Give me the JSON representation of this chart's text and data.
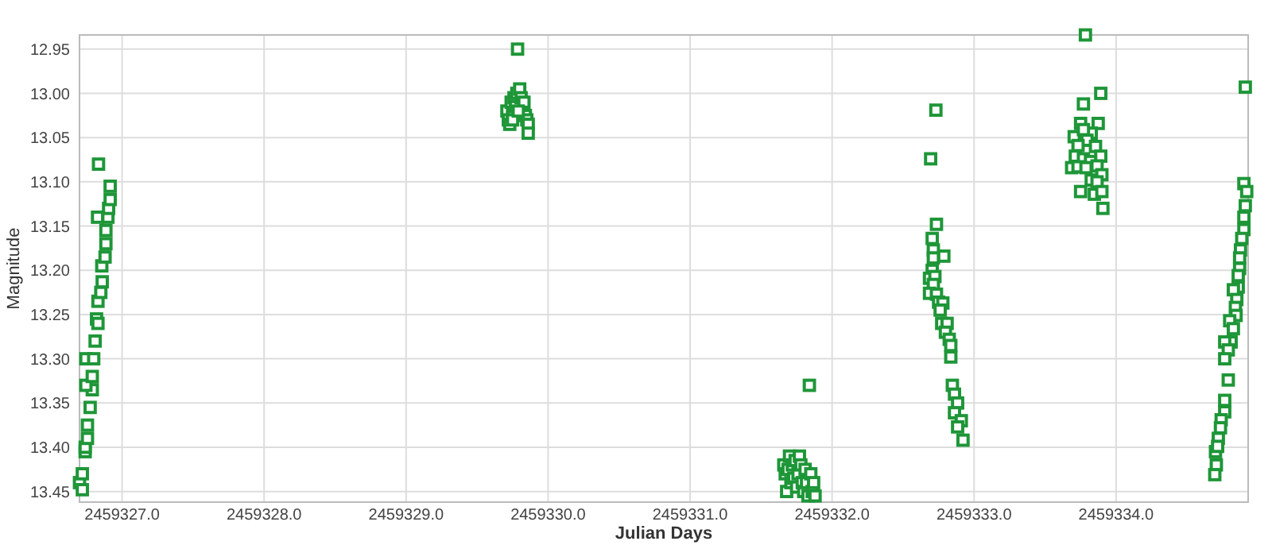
{
  "chart_data": {
    "type": "scatter",
    "xlabel": "Julian Days",
    "ylabel": "Magnitude",
    "marker": "square",
    "grid": true,
    "xlim": [
      2459326.7,
      2459334.93
    ],
    "ylim": [
      13.462,
      12.934
    ],
    "xticks": [
      {
        "value": 2459327,
        "label": "2459327.0"
      },
      {
        "value": 2459328,
        "label": "2459328.0"
      },
      {
        "value": 2459329,
        "label": "2459329.0"
      },
      {
        "value": 2459330,
        "label": "2459330.0"
      },
      {
        "value": 2459331,
        "label": "2459331.0"
      },
      {
        "value": 2459332,
        "label": "2459332.0"
      },
      {
        "value": 2459333,
        "label": "2459333.0"
      },
      {
        "value": 2459334,
        "label": "2459334.0"
      }
    ],
    "yticks": [
      {
        "value": 12.95,
        "label": "12.95"
      },
      {
        "value": 13,
        "label": "13.00"
      },
      {
        "value": 13.05,
        "label": "13.05"
      },
      {
        "value": 13.1,
        "label": "13.10"
      },
      {
        "value": 13.15,
        "label": "13.15"
      },
      {
        "value": 13.2,
        "label": "13.20"
      },
      {
        "value": 13.25,
        "label": "13.25"
      },
      {
        "value": 13.3,
        "label": "13.30"
      },
      {
        "value": 13.35,
        "label": "13.35"
      },
      {
        "value": 13.4,
        "label": "13.40"
      },
      {
        "value": 13.45,
        "label": "13.45"
      }
    ],
    "series": [
      {
        "color": "#1e9638",
        "x": [
          2459326.7,
          2459326.72,
          2459326.72,
          2459326.74,
          2459326.74,
          2459326.756,
          2459326.756,
          2459326.775,
          2459326.79,
          2459326.745,
          2459326.745,
          2459326.8,
          2459326.79,
          2459326.81,
          2459326.82,
          2459326.83,
          2459326.83,
          2459326.85,
          2459326.86,
          2459326.857,
          2459326.88,
          2459326.886,
          2459326.886,
          2459326.9,
          2459326.905,
          2459326.916,
          2459326.916,
          2459326.834,
          2459326.827,
          2459329.785,
          2459329.71,
          2459329.72,
          2459329.73,
          2459329.74,
          2459329.75,
          2459329.76,
          2459329.77,
          2459329.78,
          2459329.8,
          2459329.81,
          2459329.83,
          2459329.84,
          2459329.85,
          2459329.86,
          2459329.86,
          2459329.75,
          2459329.79,
          2459331.66,
          2459331.67,
          2459331.68,
          2459331.69,
          2459331.7,
          2459331.71,
          2459331.72,
          2459331.73,
          2459331.74,
          2459331.75,
          2459331.76,
          2459331.77,
          2459331.78,
          2459331.79,
          2459331.8,
          2459331.81,
          2459331.82,
          2459331.83,
          2459331.84,
          2459331.85,
          2459331.86,
          2459331.87,
          2459331.88,
          2459332.694,
          2459332.731,
          2459332.735,
          2459332.705,
          2459332.713,
          2459332.713,
          2459332.787,
          2459332.705,
          2459332.686,
          2459332.724,
          2459332.713,
          2459332.686,
          2459332.735,
          2459332.75,
          2459332.78,
          2459332.761,
          2459332.772,
          2459332.81,
          2459332.798,
          2459332.825,
          2459332.836,
          2459332.836,
          2459332.847,
          2459332.862,
          2459332.884,
          2459332.862,
          2459332.91,
          2459332.884,
          2459332.922,
          2459333.784,
          2459333.892,
          2459333.77,
          2459333.874,
          2459333.75,
          2459333.825,
          2459333.705,
          2459333.77,
          2459333.795,
          2459333.732,
          2459333.855,
          2459333.713,
          2459333.892,
          2459333.77,
          2459333.82,
          2459333.687,
          2459333.866,
          2459333.732,
          2459333.788,
          2459333.9,
          2459333.825,
          2459333.866,
          2459333.75,
          2459333.847,
          2459333.9,
          2459333.907,
          2459334.91,
          2459334.9,
          2459334.92,
          2459334.91,
          2459334.9,
          2459334.9,
          2459334.885,
          2459334.876,
          2459334.87,
          2459334.87,
          2459334.86,
          2459334.86,
          2459334.826,
          2459334.85,
          2459334.84,
          2459334.845,
          2459334.8,
          2459334.826,
          2459334.81,
          2459334.765,
          2459334.79,
          2459334.765,
          2459334.79,
          2459334.765,
          2459334.765,
          2459334.74,
          2459334.735,
          2459334.72,
          2459334.7,
          2459334.715,
          2459334.706,
          2459334.695
        ],
        "values": [
          13.44,
          13.448,
          13.43,
          13.405,
          13.4,
          13.39,
          13.375,
          13.355,
          13.335,
          13.33,
          13.3,
          13.3,
          13.32,
          13.28,
          13.255,
          13.26,
          13.235,
          13.225,
          13.213,
          13.195,
          13.185,
          13.17,
          13.155,
          13.14,
          13.13,
          13.12,
          13.105,
          13.08,
          13.14,
          12.95,
          13.02,
          13.03,
          13.035,
          13.01,
          13.025,
          13.005,
          13.015,
          13.0,
          12.995,
          13.005,
          13.01,
          13.025,
          13.03,
          13.035,
          13.045,
          13.03,
          13.02,
          13.42,
          13.43,
          13.45,
          13.425,
          13.41,
          13.44,
          13.42,
          13.435,
          13.415,
          13.445,
          13.43,
          13.41,
          13.42,
          13.44,
          13.45,
          13.425,
          13.44,
          13.455,
          13.33,
          13.43,
          13.45,
          13.44,
          13.455,
          13.074,
          13.019,
          13.148,
          13.164,
          13.177,
          13.186,
          13.184,
          13.2,
          13.209,
          13.207,
          13.216,
          13.226,
          13.227,
          13.236,
          13.237,
          13.245,
          13.26,
          13.26,
          13.27,
          13.278,
          13.285,
          13.298,
          13.33,
          13.34,
          13.35,
          13.361,
          13.37,
          13.377,
          13.392,
          12.934,
          13.0,
          13.012,
          13.034,
          13.034,
          13.045,
          13.049,
          13.041,
          13.053,
          13.059,
          13.06,
          13.071,
          13.071,
          13.074,
          13.077,
          13.084,
          13.082,
          13.083,
          13.084,
          13.092,
          13.098,
          13.1,
          13.111,
          13.114,
          13.111,
          13.13,
          12.993,
          13.102,
          13.111,
          13.127,
          13.14,
          13.154,
          13.164,
          13.177,
          13.186,
          13.198,
          13.206,
          13.219,
          13.222,
          13.233,
          13.242,
          13.251,
          13.257,
          13.266,
          13.281,
          13.281,
          13.29,
          13.3,
          13.324,
          13.347,
          13.36,
          13.369,
          13.378,
          13.39,
          13.405,
          13.399,
          13.42,
          13.431
        ]
      }
    ]
  }
}
